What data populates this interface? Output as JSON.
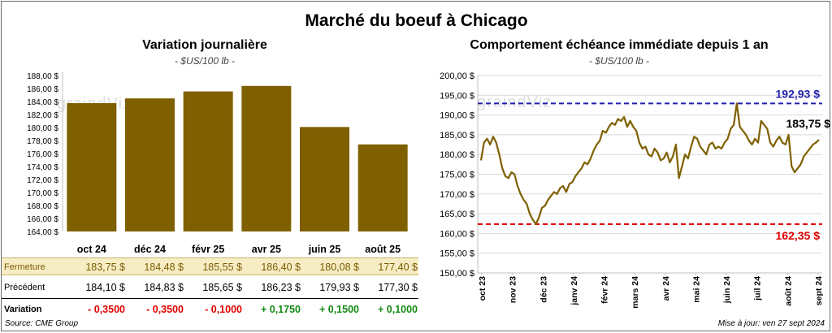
{
  "title": "Marché du boeuf à Chicago",
  "watermark": "graindViz",
  "left": {
    "subtitle": "Variation journalière",
    "unit": "- $US/100 lb -"
  },
  "right": {
    "subtitle": "Comportement échéance immédiate depuis 1 an",
    "unit": "- $US/100 lb -"
  },
  "table": {
    "close_label": "Fermeture",
    "prev_label": "Précédent",
    "var_label": "Variation",
    "close": [
      "183,75  $",
      "184,48  $",
      "185,55  $",
      "186,40  $",
      "180,08  $",
      "177,40  $"
    ],
    "prev": [
      "184,10  $",
      "184,83  $",
      "185,65  $",
      "186,23  $",
      "179,93  $",
      "177,30  $"
    ],
    "var": [
      "- 0,3500",
      "- 0,3500",
      "- 0,1000",
      "+ 0,1750",
      "+ 0,1500",
      "+ 0,1000"
    ],
    "var_colors": [
      "#e00000",
      "#e00000",
      "#e00000",
      "#138a13",
      "#138a13",
      "#138a13"
    ]
  },
  "source": "Source: CME Group",
  "updated": "Mise à jour: ven 27 sept 2024",
  "colors": {
    "bar": "#7f6000",
    "line": "#7f6000",
    "high": "#1f1fa8",
    "low": "#e00000"
  },
  "chart_data": [
    {
      "type": "bar",
      "categories": [
        "oct 24",
        "déc 24",
        "févr 25",
        "avr 25",
        "juin 25",
        "août 25"
      ],
      "values": [
        183.75,
        184.48,
        185.55,
        186.4,
        180.08,
        177.4
      ],
      "ylim": [
        164,
        188
      ],
      "yticks": [
        "164,00 $",
        "166,00 $",
        "168,00 $",
        "170,00 $",
        "172,00 $",
        "174,00 $",
        "176,00 $",
        "178,00 $",
        "180,00 $",
        "182,00 $",
        "184,00 $",
        "186,00 $",
        "188,00 $"
      ],
      "ytick_values": [
        164,
        166,
        168,
        170,
        172,
        174,
        176,
        178,
        180,
        182,
        184,
        186,
        188
      ],
      "grid": false
    },
    {
      "type": "line",
      "xticks": [
        "oct 23",
        "nov 23",
        "déc 23",
        "janv 24",
        "févr 24",
        "mars 24",
        "avr 24",
        "mai 24",
        "juin 24",
        "juil 24",
        "août 24",
        "sept 24"
      ],
      "ylim": [
        150,
        200
      ],
      "yticks": [
        "150,00 $",
        "155,00 $",
        "160,00 $",
        "165,00 $",
        "170,00 $",
        "175,00 $",
        "180,00 $",
        "185,00 $",
        "190,00 $",
        "195,00 $",
        "200,00 $"
      ],
      "ytick_values": [
        150,
        155,
        160,
        165,
        170,
        175,
        180,
        185,
        190,
        195,
        200
      ],
      "grid": true,
      "high": 192.93,
      "high_label": "192,93 $",
      "low": 162.35,
      "low_label": "162,35 $",
      "last_label": "183,75 $",
      "series": [
        {
          "values": [
            178.5,
            183.0,
            184.0,
            182.5,
            184.5,
            183.0,
            180.0,
            176.5,
            174.5,
            174.0,
            175.5,
            175.0,
            172.0,
            170.0,
            168.5,
            167.5,
            165.0,
            163.5,
            162.35,
            164.0,
            166.5,
            167.0,
            168.5,
            169.5,
            170.5,
            170.0,
            171.5,
            172.0,
            170.5,
            172.5,
            173.0,
            174.5,
            175.5,
            176.5,
            178.0,
            177.5,
            179.0,
            181.0,
            182.5,
            183.5,
            186.0,
            185.5,
            187.0,
            188.0,
            187.5,
            189.0,
            188.5,
            189.5,
            187.0,
            188.5,
            187.0,
            186.0,
            183.0,
            181.5,
            182.0,
            180.0,
            179.5,
            181.5,
            180.5,
            178.5,
            179.0,
            180.5,
            178.0,
            179.5,
            182.5,
            174.0,
            177.0,
            180.0,
            179.0,
            182.0,
            184.5,
            184.0,
            182.0,
            181.0,
            180.0,
            182.5,
            183.0,
            181.5,
            182.0,
            181.5,
            183.0,
            184.0,
            186.5,
            187.5,
            192.93,
            187.0,
            186.0,
            185.0,
            183.5,
            182.5,
            184.0,
            183.0,
            188.5,
            187.5,
            186.5,
            183.0,
            182.0,
            183.5,
            184.5,
            183.0,
            182.5,
            185.0,
            177.0,
            175.5,
            176.5,
            177.5,
            179.5,
            180.5,
            181.5,
            182.5,
            183.0,
            183.75
          ]
        }
      ]
    }
  ]
}
